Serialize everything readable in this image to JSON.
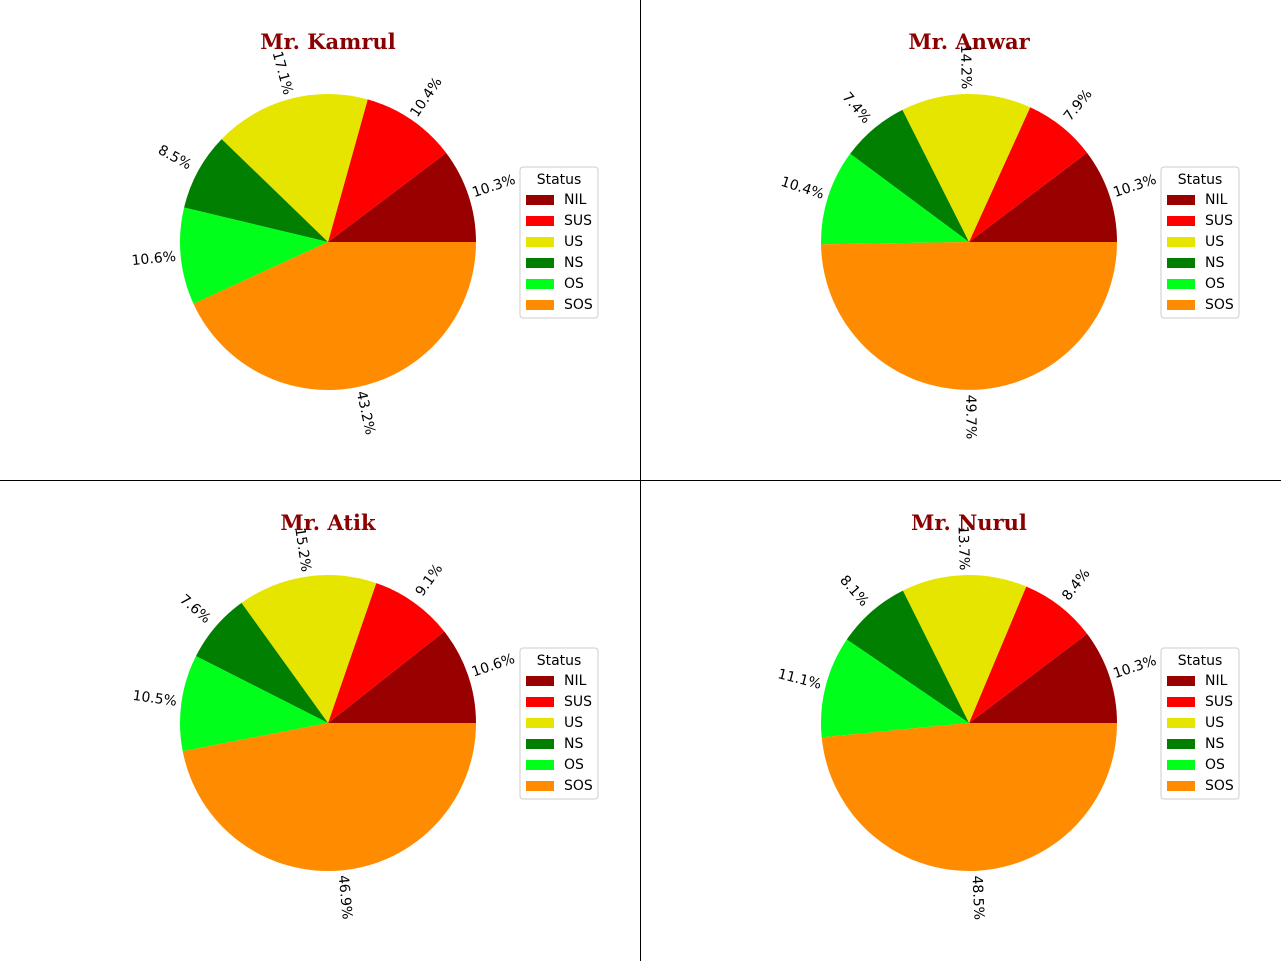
{
  "legend_title": "Status",
  "chart_data": [
    {
      "type": "pie",
      "title": "Mr. Kamrul",
      "labels": [
        "NIL",
        "SUS",
        "US",
        "NS",
        "OS",
        "SOS"
      ],
      "values": [
        10.3,
        10.4,
        17.1,
        8.5,
        10.6,
        43.2
      ],
      "value_labels": [
        "10.3%",
        "10.4%",
        "17.1%",
        "8.5%",
        "10.6%",
        "43.2%"
      ],
      "colors": [
        "#990000",
        "#ff0000",
        "#e5e500",
        "#007f00",
        "#00ff1a",
        "#ff8c00"
      ],
      "legend": "right"
    },
    {
      "type": "pie",
      "title": "Mr. Anwar",
      "labels": [
        "NIL",
        "SUS",
        "US",
        "NS",
        "OS",
        "SOS"
      ],
      "values": [
        10.3,
        7.9,
        14.2,
        7.4,
        10.4,
        49.7
      ],
      "value_labels": [
        "10.3%",
        "7.9%",
        "14.2%",
        "7.4%",
        "10.4%",
        "49.7%"
      ],
      "colors": [
        "#990000",
        "#ff0000",
        "#e5e500",
        "#007f00",
        "#00ff1a",
        "#ff8c00"
      ],
      "legend": "right"
    },
    {
      "type": "pie",
      "title": "Mr. Atik",
      "labels": [
        "NIL",
        "SUS",
        "US",
        "NS",
        "OS",
        "SOS"
      ],
      "values": [
        10.6,
        9.1,
        15.2,
        7.6,
        10.5,
        46.9
      ],
      "value_labels": [
        "10.6%",
        "9.1%",
        "15.2%",
        "7.6%",
        "10.5%",
        "46.9%"
      ],
      "colors": [
        "#990000",
        "#ff0000",
        "#e5e500",
        "#007f00",
        "#00ff1a",
        "#ff8c00"
      ],
      "legend": "right"
    },
    {
      "type": "pie",
      "title": "Mr. Nurul",
      "labels": [
        "NIL",
        "SUS",
        "US",
        "NS",
        "OS",
        "SOS"
      ],
      "values": [
        10.3,
        8.4,
        13.7,
        8.1,
        11.1,
        48.5
      ],
      "value_labels": [
        "10.3%",
        "8.4%",
        "13.7%",
        "8.1%",
        "11.1%",
        "48.5%"
      ],
      "colors": [
        "#990000",
        "#ff0000",
        "#e5e500",
        "#007f00",
        "#00ff1a",
        "#ff8c00"
      ],
      "legend": "right"
    }
  ]
}
